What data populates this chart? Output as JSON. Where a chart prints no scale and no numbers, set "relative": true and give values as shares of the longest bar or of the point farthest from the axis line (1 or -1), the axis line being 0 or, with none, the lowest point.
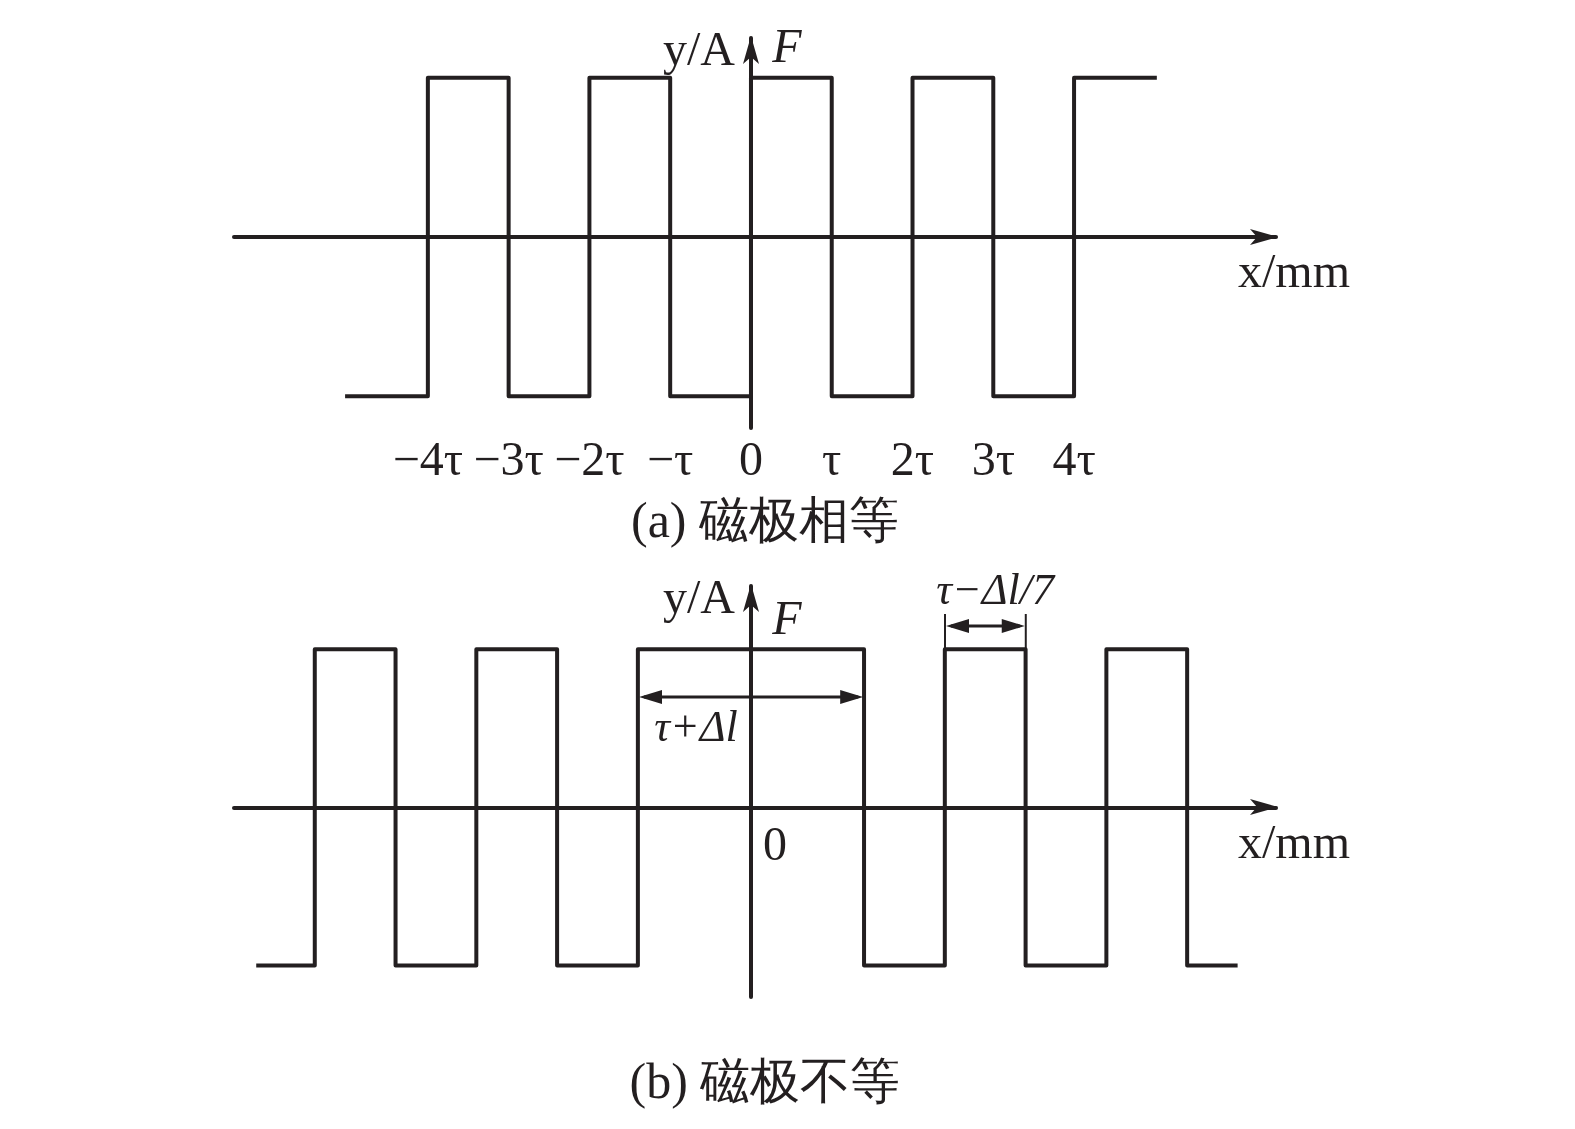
{
  "chart_data": [
    {
      "type": "step",
      "title": "(a) 磁极相等",
      "xlabel": "x/mm",
      "ylabel": "y/A",
      "relative": true,
      "marker": "none",
      "line_style": "solid",
      "xlim": [
        -6.4,
        6.5
      ],
      "xticks": [
        {
          "value": -4,
          "label": "−4τ"
        },
        {
          "value": -3,
          "label": "−3τ"
        },
        {
          "value": -2,
          "label": "−2τ"
        },
        {
          "value": -1,
          "label": "−τ"
        },
        0,
        {
          "value": 1,
          "label": "τ"
        },
        {
          "value": 2,
          "label": "2τ"
        },
        {
          "value": 3,
          "label": "3τ"
        },
        {
          "value": 4,
          "label": "4τ"
        }
      ],
      "x": [
        -5,
        -4,
        -3,
        -2,
        -1,
        0,
        1,
        2,
        3,
        4,
        5
      ],
      "series": [
        {
          "name": "F",
          "color": "#231f20",
          "values": [
            -1,
            1,
            -1,
            1,
            -1,
            1,
            -1,
            1,
            -1,
            1,
            1
          ]
        }
      ]
    },
    {
      "type": "step",
      "title": "(b) 磁极不等",
      "xlabel": "x/mm",
      "ylabel": "y/A",
      "relative": true,
      "marker": "none",
      "line_style": "solid",
      "xlim": [
        -6.4,
        6.5
      ],
      "x": [
        -6.1,
        -5.4,
        -4.4,
        -3.4,
        -2.4,
        -1.4,
        1.4,
        2.4,
        3.4,
        4.4,
        5.4,
        6.0
      ],
      "series": [
        {
          "name": "F",
          "color": "#231f20",
          "values": [
            -1,
            1,
            -1,
            1,
            -1,
            1,
            -1,
            1,
            -1,
            1,
            -1,
            -1
          ]
        }
      ],
      "annotations": [
        "0",
        "τ+Δl",
        "τ−Δl/7"
      ]
    }
  ]
}
